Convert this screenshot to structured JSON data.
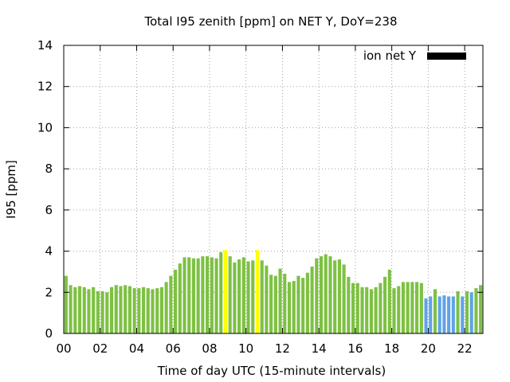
{
  "chart_data": {
    "type": "bar",
    "title": "Total I95 zenith [ppm] on NET Y, DoY=238",
    "xlabel": "Time of day UTC (15-minute intervals)",
    "ylabel": "I95 [ppm]",
    "ylim": [
      0,
      14
    ],
    "xlim": [
      0,
      23
    ],
    "x_ticks": [
      "00",
      "02",
      "04",
      "06",
      "08",
      "10",
      "12",
      "14",
      "16",
      "18",
      "20",
      "22"
    ],
    "y_ticks": [
      "0",
      "2",
      "4",
      "6",
      "8",
      "10",
      "12",
      "14"
    ],
    "grid": true,
    "legend": {
      "label": "ion net Y",
      "color": "#000000",
      "placement": "top-right"
    },
    "interval_hours": 0.25,
    "colors": {
      "green": "#7dc142",
      "yellow": "#ffff00",
      "blue": "#5fa3e8"
    },
    "values": [
      2.8,
      2.35,
      2.25,
      2.3,
      2.25,
      2.15,
      2.25,
      2.05,
      2.05,
      2.0,
      2.25,
      2.35,
      2.3,
      2.35,
      2.3,
      2.2,
      2.2,
      2.25,
      2.2,
      2.15,
      2.2,
      2.25,
      2.5,
      2.8,
      3.1,
      3.4,
      3.7,
      3.7,
      3.65,
      3.65,
      3.75,
      3.75,
      3.7,
      3.65,
      3.95,
      4.05,
      3.75,
      3.45,
      3.6,
      3.7,
      3.5,
      3.55,
      4.05,
      3.55,
      3.3,
      2.85,
      2.8,
      3.15,
      2.9,
      2.5,
      2.55,
      2.8,
      2.7,
      2.95,
      3.25,
      3.65,
      3.75,
      3.85,
      3.75,
      3.55,
      3.6,
      3.35,
      2.75,
      2.45,
      2.45,
      2.25,
      2.25,
      2.15,
      2.25,
      2.45,
      2.75,
      3.1,
      2.2,
      2.3,
      2.5,
      2.5,
      2.5,
      2.5,
      2.45,
      1.7,
      1.8,
      2.15,
      1.8,
      1.85,
      1.8,
      1.8,
      2.05,
      1.8,
      2.05,
      2.0,
      2.2,
      2.35
    ],
    "bar_colors": [
      "green",
      "green",
      "green",
      "green",
      "green",
      "green",
      "green",
      "green",
      "green",
      "green",
      "green",
      "green",
      "green",
      "green",
      "green",
      "green",
      "green",
      "green",
      "green",
      "green",
      "green",
      "green",
      "green",
      "green",
      "green",
      "green",
      "green",
      "green",
      "green",
      "green",
      "green",
      "green",
      "green",
      "green",
      "green",
      "yellow",
      "green",
      "green",
      "green",
      "green",
      "green",
      "green",
      "yellow",
      "green",
      "green",
      "green",
      "green",
      "green",
      "green",
      "green",
      "green",
      "green",
      "green",
      "green",
      "green",
      "green",
      "green",
      "green",
      "green",
      "green",
      "green",
      "green",
      "green",
      "green",
      "green",
      "green",
      "green",
      "green",
      "green",
      "green",
      "green",
      "green",
      "green",
      "green",
      "green",
      "green",
      "green",
      "green",
      "green",
      "blue",
      "blue",
      "green",
      "blue",
      "blue",
      "blue",
      "blue",
      "green",
      "blue",
      "green",
      "blue",
      "green",
      "green"
    ]
  }
}
